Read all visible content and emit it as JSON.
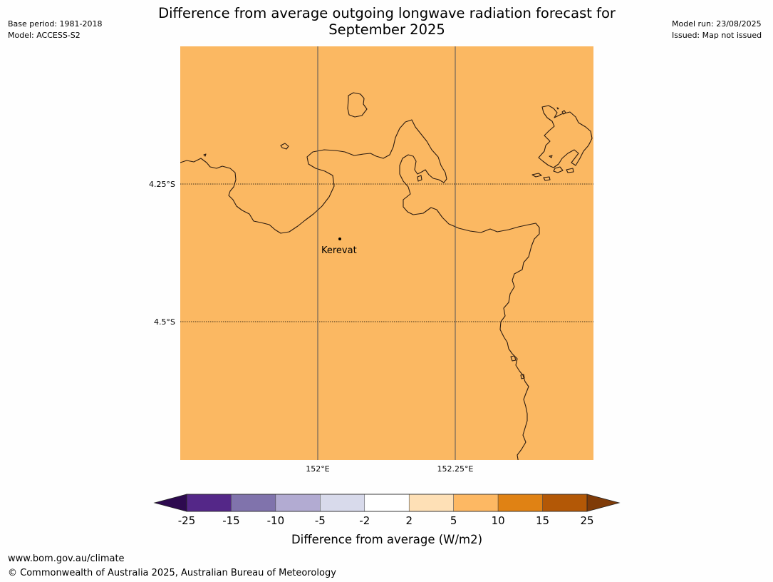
{
  "header": {
    "left": [
      "Base period: 1981-2018",
      "Model: ACCESS-S2"
    ],
    "right": [
      "Model run: 23/08/2025",
      "Issued: Map not issued"
    ],
    "title_line1": "Difference from average outgoing longwave radiation forecast for",
    "title_line2": "September 2025"
  },
  "map": {
    "fill_color": "#fbb862",
    "lat_labels": [
      "4.25°S",
      "4.5°S"
    ],
    "lon_labels": [
      "152°E",
      "152.25°E"
    ],
    "place": {
      "name": "Kerevat"
    }
  },
  "legend": {
    "title": "Difference from average (W/m2)",
    "ticks": [
      "-25",
      "-15",
      "-10",
      "-5",
      "-2",
      "2",
      "5",
      "10",
      "15",
      "25"
    ],
    "low_extend_color": "#2d0a4f",
    "high_extend_color": "#7f3b08",
    "bins": [
      {
        "range": "-25 to -15",
        "color": "#542788"
      },
      {
        "range": "-15 to -10",
        "color": "#8073ac"
      },
      {
        "range": "-10 to -5",
        "color": "#b2abd2"
      },
      {
        "range": "-5 to -2",
        "color": "#d8daeb"
      },
      {
        "range": "-2 to 2",
        "color": "#ffffff"
      },
      {
        "range": "2 to 5",
        "color": "#fee0b6"
      },
      {
        "range": "5 to 10",
        "color": "#fdb863"
      },
      {
        "range": "10 to 15",
        "color": "#e08214"
      },
      {
        "range": "15 to 25",
        "color": "#b35806"
      }
    ]
  },
  "footer": {
    "url": "www.bom.gov.au/climate",
    "copyright": "© Commonwealth of Australia 2025, Australian Bureau of Meteorology"
  }
}
